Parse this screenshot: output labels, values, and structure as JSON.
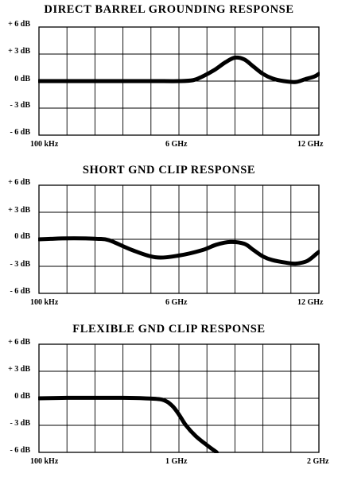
{
  "chart_data": [
    {
      "type": "line",
      "title": "DIRECT BARREL GROUNDING RESPONSE",
      "y_ticks": [
        "+ 6 dB",
        "+ 3 dB",
        "0 dB",
        "- 3 dB",
        "- 6 dB"
      ],
      "x_ticks": [
        "100 kHz",
        "6 GHz",
        "12 GHz"
      ],
      "ylim": [
        -6,
        6
      ],
      "xlim": [
        0,
        12
      ],
      "x_unit": "GHz",
      "grid": true,
      "series": [
        {
          "x": [
            0,
            0.5,
            1,
            2,
            3,
            4,
            5,
            6,
            6.6,
            7,
            7.5,
            8,
            8.4,
            8.8,
            9.2,
            9.6,
            10,
            10.5,
            11,
            11.4,
            11.8,
            12
          ],
          "y": [
            0,
            0,
            0,
            0,
            0,
            0,
            0,
            0,
            0.1,
            0.5,
            1.2,
            2.1,
            2.6,
            2.4,
            1.6,
            0.8,
            0.3,
            0.0,
            -0.1,
            0.2,
            0.5,
            0.8
          ]
        }
      ]
    },
    {
      "type": "line",
      "title": "SHORT GND CLIP RESPONSE",
      "y_ticks": [
        "+ 6 dB",
        "+ 3 dB",
        "0 dB",
        "- 3 dB",
        "- 6 dB"
      ],
      "x_ticks": [
        "100 kHz",
        "6 GHz",
        "12 GHz"
      ],
      "ylim": [
        -6,
        6
      ],
      "xlim": [
        0,
        12
      ],
      "x_unit": "GHz",
      "grid": true,
      "series": [
        {
          "x": [
            0,
            0.5,
            1,
            2,
            2.5,
            3,
            4,
            5,
            6,
            7,
            7.6,
            8.2,
            8.8,
            9.2,
            9.6,
            10,
            10.6,
            11,
            11.5,
            11.9,
            12
          ],
          "y": [
            0,
            0.05,
            0.1,
            0.1,
            0.05,
            -0.1,
            -1.2,
            -2.0,
            -1.8,
            -1.2,
            -0.6,
            -0.3,
            -0.5,
            -1.2,
            -1.9,
            -2.3,
            -2.6,
            -2.7,
            -2.4,
            -1.6,
            -1.4
          ]
        }
      ]
    },
    {
      "type": "line",
      "title": "FLEXIBLE GND CLIP RESPONSE",
      "y_ticks": [
        "+ 6 dB",
        "+ 3 dB",
        "0 dB",
        "- 3 dB",
        "- 6 dB"
      ],
      "x_ticks": [
        "100 kHz",
        "1 GHz",
        "2 GHz"
      ],
      "ylim": [
        -6,
        6
      ],
      "xlim": [
        0,
        2
      ],
      "x_unit": "GHz",
      "grid": true,
      "series": [
        {
          "x": [
            0,
            0.2,
            0.4,
            0.6,
            0.75,
            0.88,
            0.95,
            1.0,
            1.05,
            1.12,
            1.2,
            1.27
          ],
          "y": [
            0,
            0.05,
            0.05,
            0.05,
            0.0,
            -0.15,
            -0.8,
            -1.8,
            -3.0,
            -4.2,
            -5.2,
            -6.0
          ]
        }
      ]
    }
  ]
}
